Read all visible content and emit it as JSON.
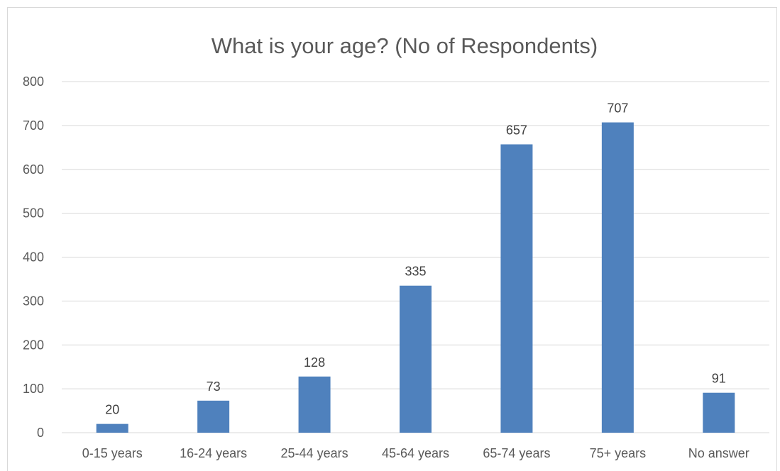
{
  "chart_data": {
    "type": "bar",
    "title": "What is your age? (No of Respondents)",
    "xlabel": "",
    "ylabel": "",
    "categories": [
      "0-15 years",
      "16-24 years",
      "25-44 years",
      "45-64 years",
      "65-74 years",
      "75+ years",
      "No answer"
    ],
    "values": [
      20,
      73,
      128,
      335,
      657,
      707,
      91
    ],
    "data_labels": [
      "20",
      "73",
      "128",
      "335",
      "657",
      "707",
      "91"
    ],
    "ylim": [
      0,
      800
    ],
    "yticks": [
      0,
      100,
      200,
      300,
      400,
      500,
      600,
      700,
      800
    ],
    "ytick_labels": [
      "0",
      "100",
      "200",
      "300",
      "400",
      "500",
      "600",
      "700",
      "800"
    ],
    "grid": true,
    "legend": "none",
    "colors": {
      "bar": "#4f81bd",
      "grid": "#d9d9d9",
      "axis_text": "#595959",
      "title_text": "#595959"
    }
  }
}
